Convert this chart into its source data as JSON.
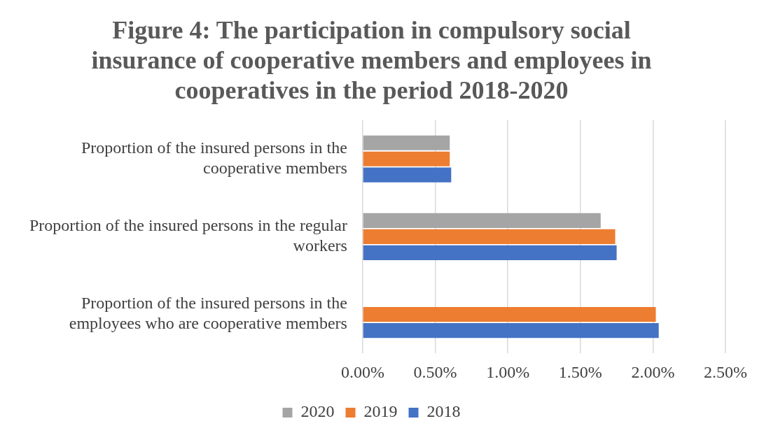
{
  "chart_data": {
    "type": "bar",
    "orientation": "horizontal",
    "title": "Figure 4: The participation in compulsory social insurance of cooperative members and employees in cooperatives in the period 2018-2020",
    "categories": [
      "Proportion of the insured persons in the cooperative members",
      "Proportion of the insured persons in the regular workers",
      "Proportion of the insured persons in the employees who are cooperative members"
    ],
    "series": [
      {
        "name": "2020",
        "color": "#a5a5a5",
        "values": [
          0.6,
          1.64,
          null
        ]
      },
      {
        "name": "2019",
        "color": "#ed7d31",
        "values": [
          0.6,
          1.74,
          2.02
        ]
      },
      {
        "name": "2018",
        "color": "#4472c4",
        "values": [
          0.61,
          1.75,
          2.04
        ]
      }
    ],
    "xlim": [
      0,
      2.5
    ],
    "xticks": [
      {
        "value": 0,
        "label": "0.00%"
      },
      {
        "value": 0.5,
        "label": "0.50%"
      },
      {
        "value": 1,
        "label": "1.00%"
      },
      {
        "value": 1.5,
        "label": "1.50%"
      },
      {
        "value": 2,
        "label": "2.00%"
      },
      {
        "value": 2.5,
        "label": "2.50%"
      }
    ],
    "grid": "x",
    "legend": "bottom"
  }
}
